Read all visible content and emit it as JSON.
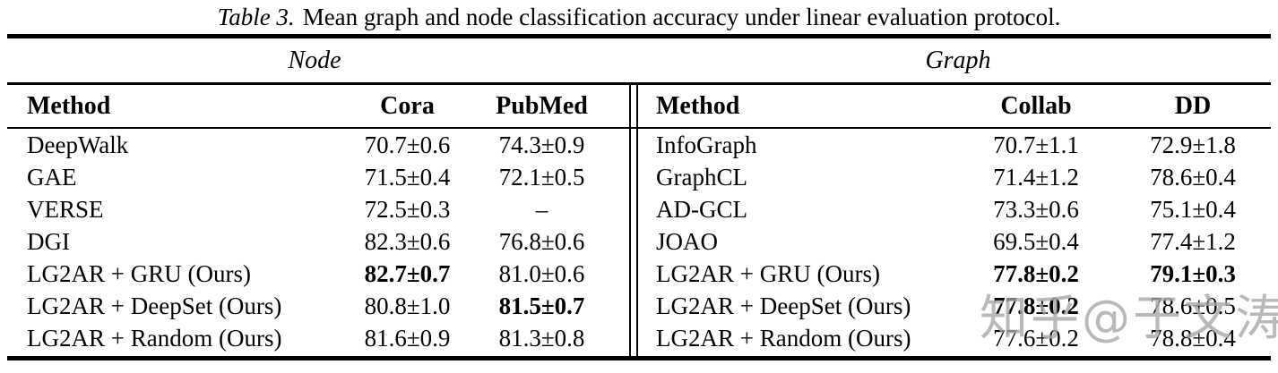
{
  "caption": {
    "prefix": "Table 3.",
    "text": "Mean graph and node classification accuracy under linear evaluation protocol."
  },
  "sections": {
    "left": "Node",
    "right": "Graph"
  },
  "node_table": {
    "headers": {
      "method": "Method",
      "c1": "Cora",
      "c2": "PubMed"
    },
    "rows": [
      {
        "method": "DeepWalk",
        "c1": "70.7±0.6",
        "c2": "74.3±0.9",
        "b1": false,
        "b2": false
      },
      {
        "method": "GAE",
        "c1": "71.5±0.4",
        "c2": "72.1±0.5",
        "b1": false,
        "b2": false
      },
      {
        "method": "VERSE",
        "c1": "72.5±0.3",
        "c2": "–",
        "b1": false,
        "b2": false
      },
      {
        "method": "DGI",
        "c1": "82.3±0.6",
        "c2": "76.8±0.6",
        "b1": false,
        "b2": false
      },
      {
        "method": "LG2AR + GRU (Ours)",
        "c1": "82.7±0.7",
        "c2": "81.0±0.6",
        "b1": true,
        "b2": false
      },
      {
        "method": "LG2AR + DeepSet (Ours)",
        "c1": "80.8±1.0",
        "c2": "81.5±0.7",
        "b1": false,
        "b2": true
      },
      {
        "method": "LG2AR + Random (Ours)",
        "c1": "81.6±0.9",
        "c2": "81.3±0.8",
        "b1": false,
        "b2": false
      }
    ]
  },
  "graph_table": {
    "headers": {
      "method": "Method",
      "c1": "Collab",
      "c2": "DD"
    },
    "rows": [
      {
        "method": "InfoGraph",
        "c1": "70.7±1.1",
        "c2": "72.9±1.8",
        "b1": false,
        "b2": false
      },
      {
        "method": "GraphCL",
        "c1": "71.4±1.2",
        "c2": "78.6±0.4",
        "b1": false,
        "b2": false
      },
      {
        "method": "AD-GCL",
        "c1": "73.3±0.6",
        "c2": "75.1±0.4",
        "b1": false,
        "b2": false
      },
      {
        "method": "JOAO",
        "c1": "69.5±0.4",
        "c2": "77.4±1.2",
        "b1": false,
        "b2": false
      },
      {
        "method": "LG2AR + GRU (Ours)",
        "c1": "77.8±0.2",
        "c2": "79.1±0.3",
        "b1": true,
        "b2": true
      },
      {
        "method": "LG2AR + DeepSet (Ours)",
        "c1": "77.8±0.2",
        "c2": "78.6±0.5",
        "b1": true,
        "b2": false
      },
      {
        "method": "LG2AR + Random (Ours)",
        "c1": "77.6±0.2",
        "c2": "78.8±0.4",
        "b1": false,
        "b2": false
      }
    ]
  },
  "watermark": "知乎@于文涛",
  "colors": {
    "background": "#ffffff",
    "text": "#000000",
    "rule": "#000000",
    "watermark": "#a8a8a8"
  }
}
